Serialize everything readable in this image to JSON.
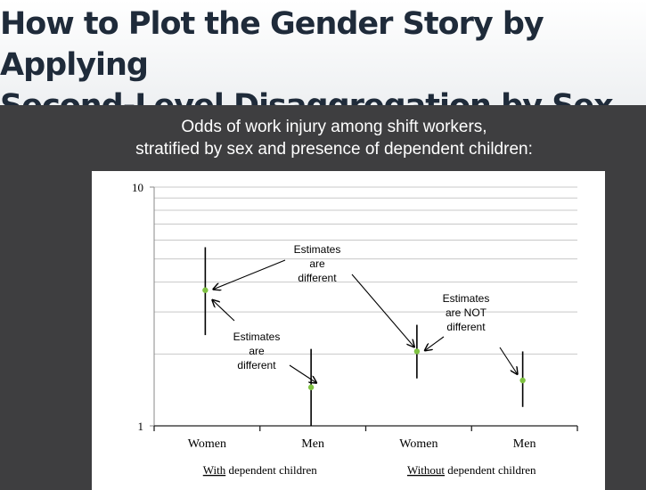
{
  "slide": {
    "title_line1": "How to Plot the Gender Story by Applying",
    "title_line2": "Second-Level Disaggregation by Sex"
  },
  "chart_data": {
    "type": "scatter",
    "title_line1": "Odds of work injury among shift workers,",
    "title_line2": "stratified by sex and presence of dependent children:",
    "y_scale": "log",
    "ylim": [
      1,
      10
    ],
    "y_ticks": [
      "1",
      "10"
    ],
    "grid": true,
    "categories": [
      "Women",
      "Men",
      "Women",
      "Men"
    ],
    "groups": [
      {
        "label_underlined": "With",
        "label_rest": " dependent children",
        "categories": [
          0,
          1
        ]
      },
      {
        "label_underlined": "Without",
        "label_rest": " dependent children",
        "categories": [
          2,
          3
        ]
      }
    ],
    "points": [
      {
        "category": "Women",
        "group": "With dependent children",
        "estimate": 3.7,
        "ci_low": 2.4,
        "ci_high": 5.6
      },
      {
        "category": "Men",
        "group": "With dependent children",
        "estimate": 1.45,
        "ci_low": 1.0,
        "ci_high": 2.1
      },
      {
        "category": "Women",
        "group": "Without dependent children",
        "estimate": 2.05,
        "ci_low": 1.58,
        "ci_high": 2.65
      },
      {
        "category": "Men",
        "group": "Without dependent children",
        "estimate": 1.55,
        "ci_low": 1.2,
        "ci_high": 2.05
      }
    ],
    "marker_color": "#7fc241",
    "annotations": [
      {
        "lines": [
          "Estimates",
          "are",
          "different"
        ]
      },
      {
        "lines": [
          "Estimates",
          "are",
          "different"
        ]
      },
      {
        "lines": [
          "Estimates",
          "are NOT",
          "different"
        ]
      }
    ]
  }
}
